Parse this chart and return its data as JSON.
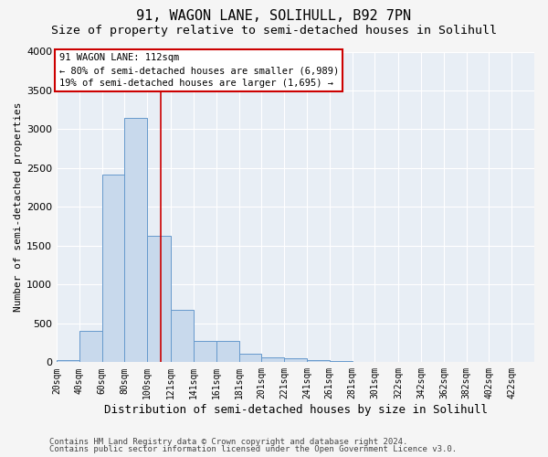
{
  "title": "91, WAGON LANE, SOLIHULL, B92 7PN",
  "subtitle": "Size of property relative to semi-detached houses in Solihull",
  "xlabel": "Distribution of semi-detached houses by size in Solihull",
  "ylabel": "Number of semi-detached properties",
  "footnote1": "Contains HM Land Registry data © Crown copyright and database right 2024.",
  "footnote2": "Contains public sector information licensed under the Open Government Licence v3.0.",
  "bar_left_edges": [
    20,
    40,
    60,
    80,
    100,
    121,
    141,
    161,
    181,
    201,
    221,
    241,
    261,
    281,
    301,
    322,
    342,
    362,
    382,
    402
  ],
  "bar_widths": [
    20,
    20,
    20,
    20,
    21,
    20,
    20,
    20,
    20,
    20,
    20,
    20,
    20,
    20,
    21,
    20,
    20,
    20,
    20,
    20
  ],
  "bar_heights": [
    30,
    400,
    2420,
    3150,
    1630,
    670,
    280,
    280,
    110,
    65,
    55,
    25,
    10,
    5,
    2,
    1,
    1,
    0,
    0,
    0
  ],
  "bar_color": "#c8d9ec",
  "bar_edge_color": "#6699cc",
  "bar_edge_width": 0.7,
  "property_size": 112,
  "red_line_color": "#cc0000",
  "annotation_line1": "91 WAGON LANE: 112sqm",
  "annotation_line2": "← 80% of semi-detached houses are smaller (6,989)",
  "annotation_line3": "19% of semi-detached houses are larger (1,695) →",
  "annotation_box_color": "#cc0000",
  "ylim": [
    0,
    4000
  ],
  "yticks": [
    0,
    500,
    1000,
    1500,
    2000,
    2500,
    3000,
    3500,
    4000
  ],
  "xtick_labels": [
    "20sqm",
    "40sqm",
    "60sqm",
    "80sqm",
    "100sqm",
    "121sqm",
    "141sqm",
    "161sqm",
    "181sqm",
    "201sqm",
    "221sqm",
    "241sqm",
    "261sqm",
    "281sqm",
    "301sqm",
    "322sqm",
    "342sqm",
    "362sqm",
    "382sqm",
    "402sqm",
    "422sqm"
  ],
  "xtick_positions": [
    20,
    40,
    60,
    80,
    100,
    121,
    141,
    161,
    181,
    201,
    221,
    241,
    261,
    281,
    301,
    322,
    342,
    362,
    382,
    402,
    422
  ],
  "xlim": [
    20,
    442
  ],
  "plot_bg_color": "#e8eef5",
  "fig_bg_color": "#f5f5f5",
  "grid_color": "#ffffff",
  "title_fontsize": 11,
  "subtitle_fontsize": 9.5,
  "xlabel_fontsize": 9,
  "ylabel_fontsize": 8,
  "tick_fontsize": 7,
  "footnote_fontsize": 6.5
}
